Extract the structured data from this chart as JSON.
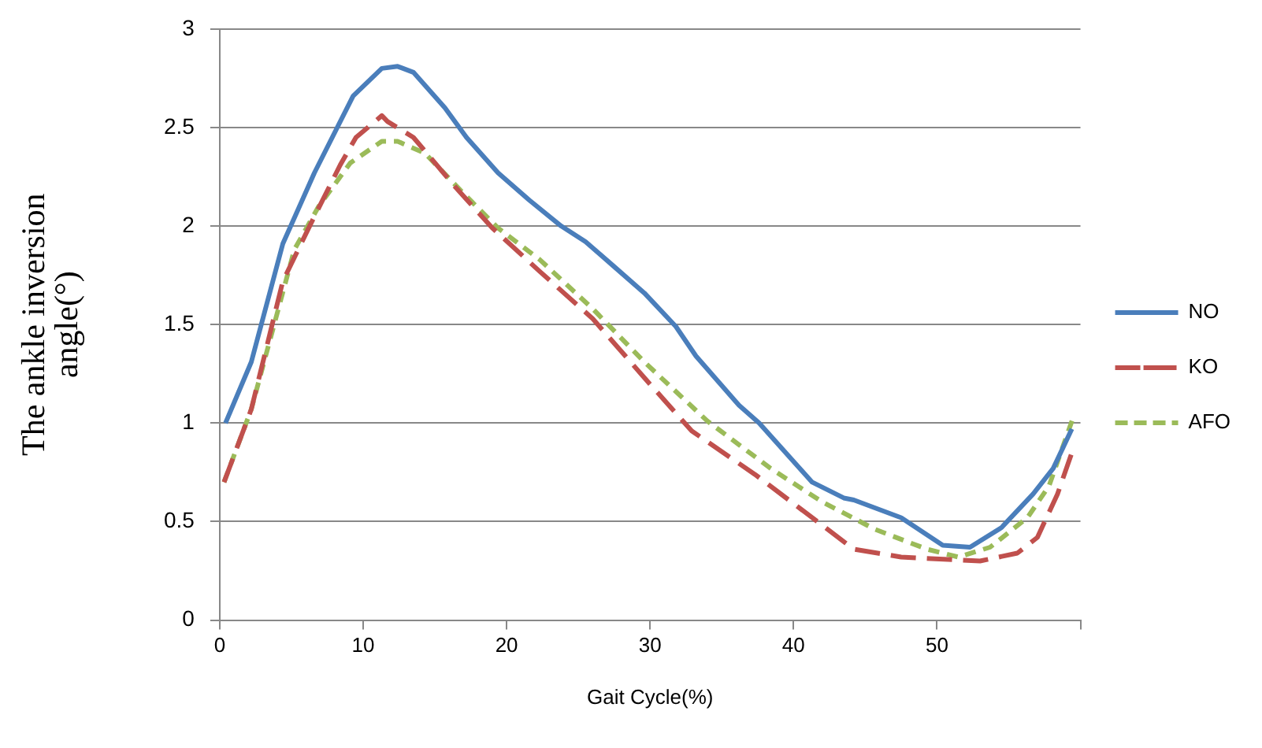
{
  "chart_data": {
    "type": "line",
    "xlabel": "Gait Cycle(%)",
    "ylabel": "The ankle inversion angle(°)",
    "xlim": [
      0,
      60
    ],
    "xticks": [
      0,
      10,
      20,
      30,
      40,
      50,
      {
        "value": 60,
        "label": null
      }
    ],
    "ylim": [
      0,
      3
    ],
    "yticks": [
      0,
      0.5,
      1,
      1.5,
      2,
      2.5,
      3
    ],
    "grid": "y",
    "legend": "right",
    "marker": "none",
    "series": [
      {
        "name": "NO",
        "color": "#4a7ebb",
        "line_style": "solid",
        "x": [
          0.4,
          2.2,
          4.4,
          6.6,
          9.3,
          11.3,
          12.4,
          13.5,
          15.7,
          17.2,
          19.4,
          21.6,
          23.8,
          25.5,
          27.4,
          29.6,
          31.8,
          33.2,
          36.2,
          37.6,
          41.3,
          43.5,
          44.2,
          47.5,
          50.4,
          52.3,
          54.5,
          56.7,
          58.1,
          59.4
        ],
        "values": [
          1.0,
          1.31,
          1.91,
          2.27,
          2.66,
          2.8,
          2.81,
          2.78,
          2.6,
          2.45,
          2.27,
          2.13,
          2.0,
          1.92,
          1.8,
          1.66,
          1.49,
          1.34,
          1.09,
          1.0,
          0.7,
          0.62,
          0.61,
          0.52,
          0.38,
          0.37,
          0.47,
          0.64,
          0.77,
          0.97
        ]
      },
      {
        "name": "KO",
        "color": "#c0504d",
        "line_style": "dashed",
        "x": [
          0.3,
          2.2,
          4.4,
          6.2,
          8.4,
          9.5,
          11.3,
          11.7,
          13.5,
          16.4,
          19,
          22.3,
          26,
          29.6,
          32.9,
          37.3,
          41.3,
          44.2,
          47.5,
          53,
          55.6,
          57,
          58.4,
          59.4
        ],
        "values": [
          0.7,
          1.07,
          1.72,
          1.99,
          2.31,
          2.45,
          2.56,
          2.53,
          2.45,
          2.2,
          1.99,
          1.77,
          1.53,
          1.23,
          0.96,
          0.74,
          0.52,
          0.36,
          0.32,
          0.3,
          0.34,
          0.42,
          0.64,
          0.85
        ]
      },
      {
        "name": "AFO",
        "color": "#9bbb59",
        "line_style": "dotted",
        "x": [
          0.3,
          2.2,
          5.2,
          6.9,
          9.1,
          11.3,
          12.4,
          14.3,
          16.8,
          19.4,
          22.3,
          26,
          29.6,
          34,
          38.4,
          42,
          45.7,
          49.3,
          51.5,
          53.7,
          56.3,
          57.8,
          59.5
        ],
        "values": [
          0.7,
          1.07,
          1.88,
          2.1,
          2.32,
          2.43,
          2.43,
          2.37,
          2.18,
          1.99,
          1.83,
          1.58,
          1.31,
          1.01,
          0.77,
          0.6,
          0.46,
          0.36,
          0.32,
          0.37,
          0.52,
          0.68,
          1.03
        ]
      }
    ]
  }
}
